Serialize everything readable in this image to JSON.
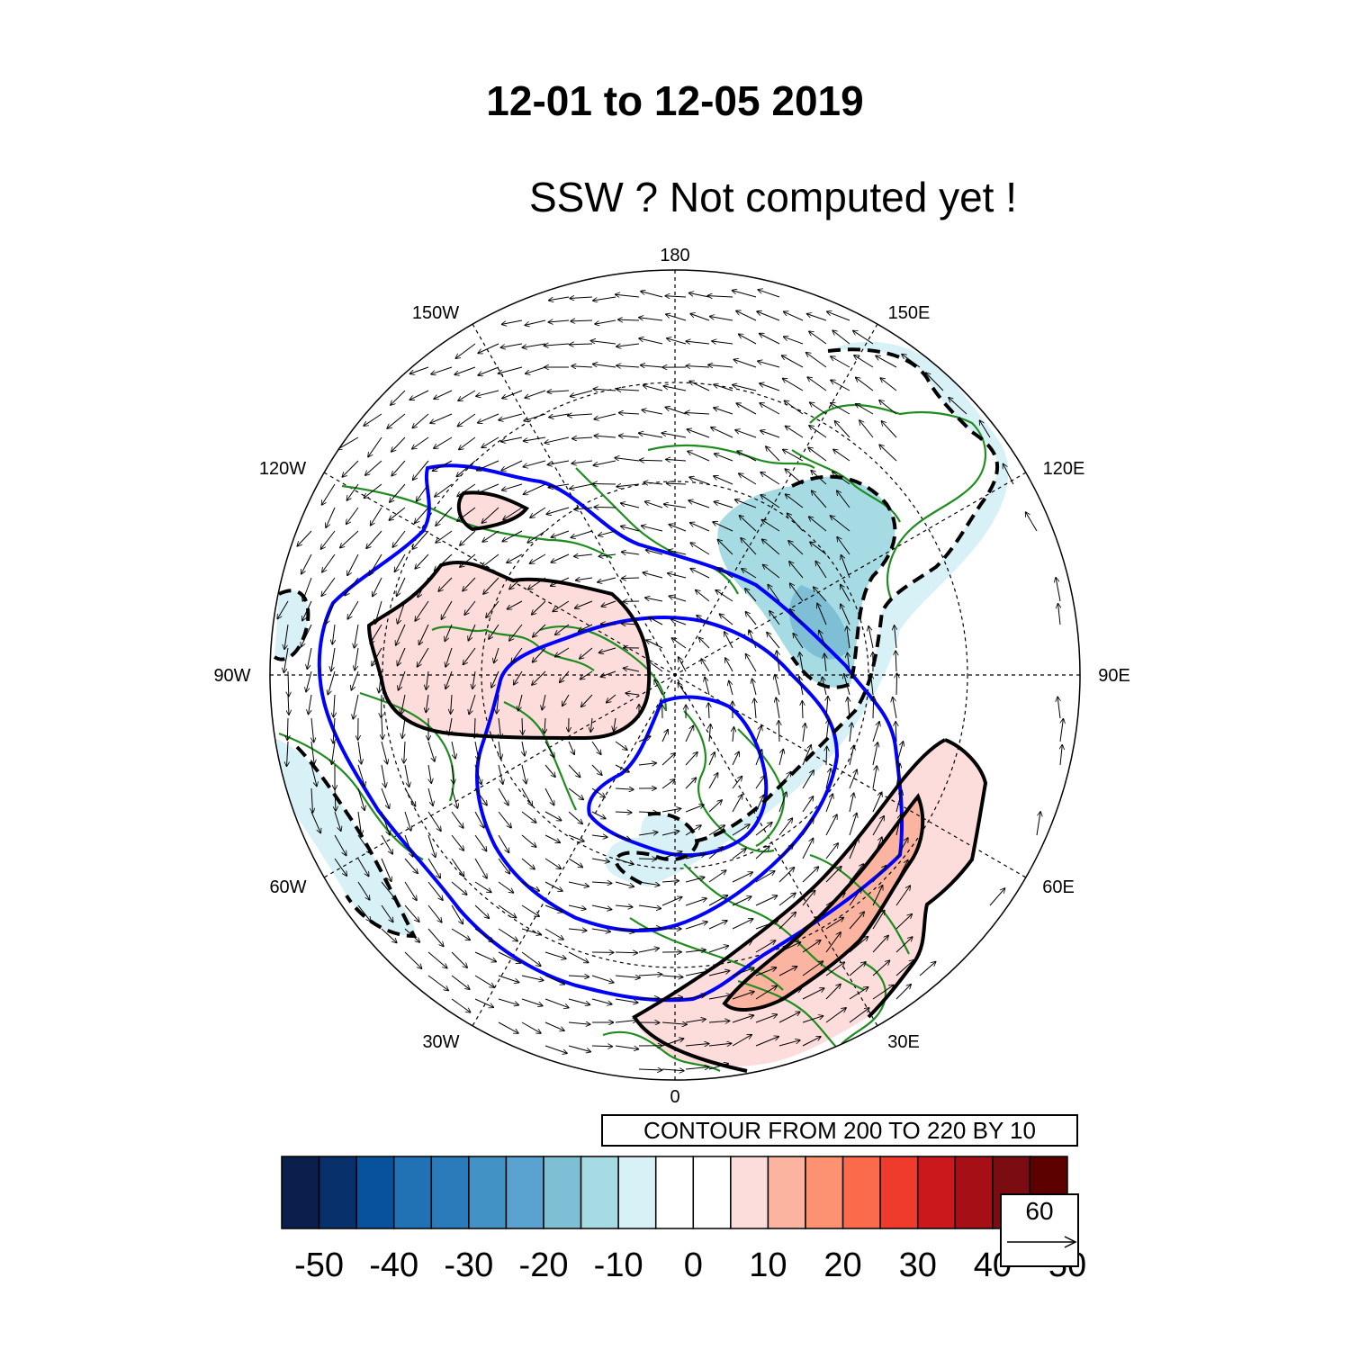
{
  "title": "12-01 to 12-05 2019",
  "subtitle": "SSW ?  Not computed yet !",
  "map": {
    "projection": "north-polar-stereographic",
    "longitude_labels": [
      "180",
      "150E",
      "120E",
      "90E",
      "60E",
      "30E",
      "0",
      "30W",
      "60W",
      "90W",
      "120W",
      "150W"
    ],
    "coastline_color": "#1e8c1e",
    "vector_color": "#000000",
    "contour_line_color": "#0000ff",
    "positive_anomaly_outline": "solid black",
    "negative_anomaly_outline": "dashed black"
  },
  "contour_info": "CONTOUR FROM 200 TO 220 BY 10",
  "reference_vector": {
    "magnitude": "60"
  },
  "colorbar": {
    "colors": [
      "#0a1f4b",
      "#08306b",
      "#08519c",
      "#2171b5",
      "#2b7bba",
      "#4292c6",
      "#5aa2cf",
      "#7ebfd6",
      "#a6dbe3",
      "#d8f1f7",
      "#ffffff",
      "#ffffff",
      "#fddcdc",
      "#fbb4a0",
      "#fc9272",
      "#fb6a4a",
      "#ef3b2c",
      "#cb181d",
      "#a50f15",
      "#7b0d12",
      "#5c0000"
    ],
    "labels": [
      "-50",
      "-40",
      "-30",
      "-20",
      "-10",
      "0",
      "10",
      "20",
      "30",
      "40",
      "50"
    ]
  }
}
